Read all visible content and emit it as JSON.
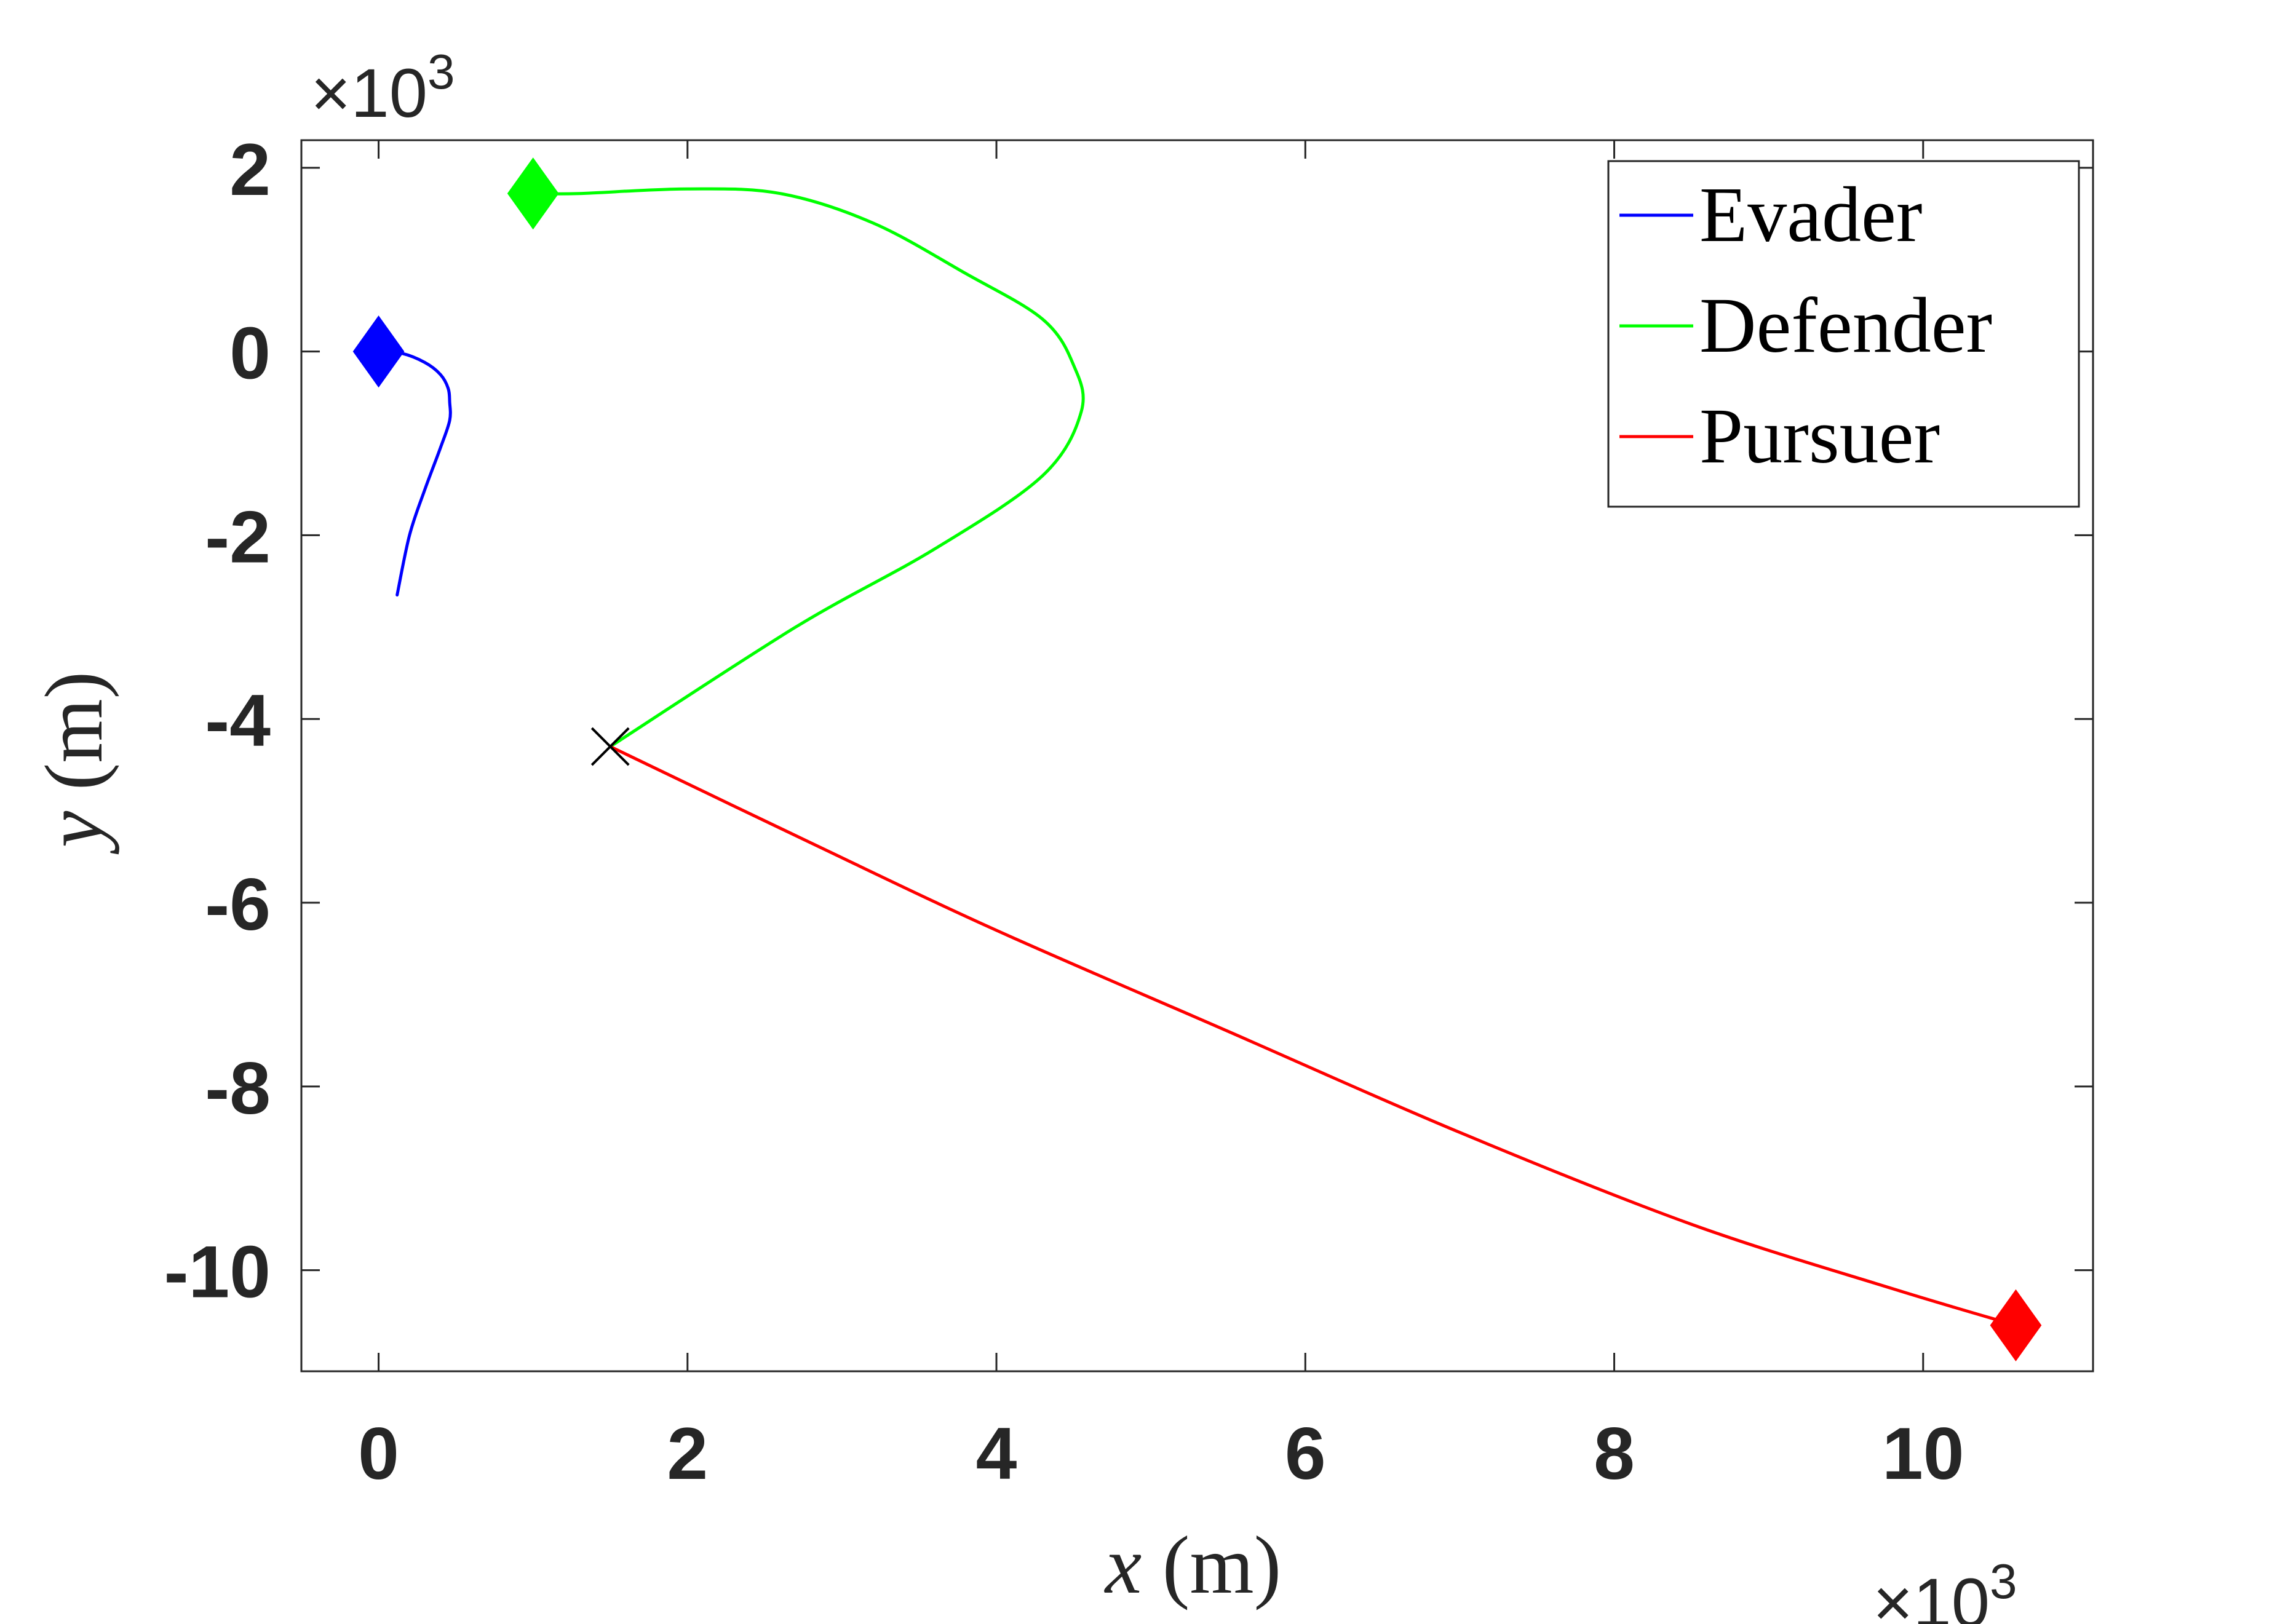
{
  "chart_data": {
    "type": "line",
    "xlabel": {
      "var": "x",
      "unit": " (m)"
    },
    "ylabel": {
      "var": "y",
      "unit": " (m)"
    },
    "x_multiplier": {
      "base": "×10",
      "exp": "3"
    },
    "y_multiplier": {
      "base": "×10",
      "exp": "3"
    },
    "xlim": [
      -0.5,
      11.1
    ],
    "ylim": [
      -11.1,
      2.3
    ],
    "xticks": [
      0,
      2,
      4,
      6,
      8,
      10
    ],
    "yticks": [
      2,
      0,
      -2,
      -4,
      -6,
      -8,
      -10
    ],
    "xtick_labels": [
      "0",
      "2",
      "4",
      "6",
      "8",
      "10"
    ],
    "ytick_labels": [
      "2",
      "0",
      "-2",
      "-4",
      "-6",
      "-8",
      "-10"
    ],
    "grid": false,
    "legend_position": "top-right",
    "series": [
      {
        "name": "Evader",
        "color": "#0000ff",
        "start_marker": "diamond",
        "points": [
          [
            0,
            0
          ],
          [
            0.15,
            -0.02
          ],
          [
            0.3,
            -0.12
          ],
          [
            0.4,
            -0.25
          ],
          [
            0.45,
            -0.4
          ],
          [
            0.46,
            -0.55
          ],
          [
            0.46,
            -0.75
          ],
          [
            0.4,
            -1.05
          ],
          [
            0.3,
            -1.5
          ],
          [
            0.2,
            -2.0
          ],
          [
            0.12,
            -2.65
          ]
        ]
      },
      {
        "name": "Defender",
        "color": "#00ff00",
        "start_marker": "diamond",
        "points": [
          [
            1.0,
            1.72
          ],
          [
            1.3,
            1.72
          ],
          [
            2.0,
            1.77
          ],
          [
            2.6,
            1.72
          ],
          [
            3.2,
            1.4
          ],
          [
            3.8,
            0.85
          ],
          [
            4.3,
            0.35
          ],
          [
            4.5,
            -0.15
          ],
          [
            4.55,
            -0.65
          ],
          [
            4.3,
            -1.35
          ],
          [
            3.6,
            -2.15
          ],
          [
            2.7,
            -3.0
          ],
          [
            1.5,
            -4.3
          ]
        ]
      },
      {
        "name": "Pursuer",
        "color": "#ff0000",
        "start_marker": "diamond",
        "points": [
          [
            10.6,
            -10.6
          ],
          [
            9.8,
            -10.2
          ],
          [
            8.5,
            -9.5
          ],
          [
            7.0,
            -8.5
          ],
          [
            5.5,
            -7.4
          ],
          [
            4.0,
            -6.3
          ],
          [
            2.8,
            -5.35
          ],
          [
            1.5,
            -4.3
          ]
        ]
      }
    ],
    "interception_point": {
      "x": 1.5,
      "y": -4.3,
      "marker": "x"
    }
  }
}
